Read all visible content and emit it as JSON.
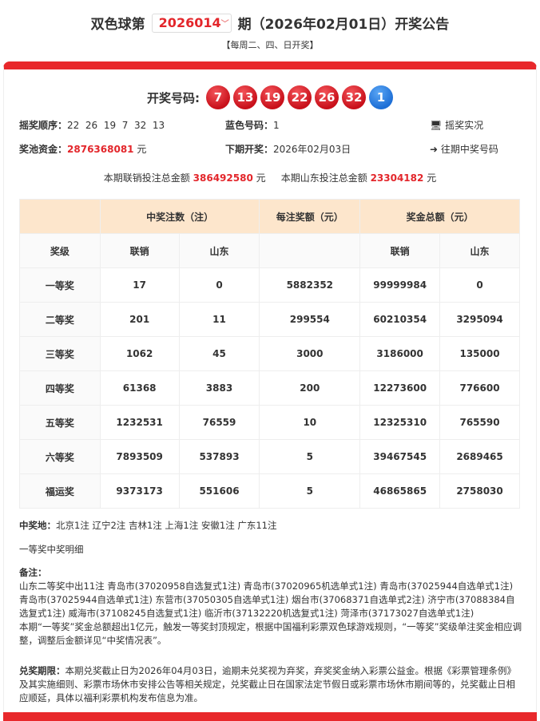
{
  "header": {
    "prefix": "双色球第",
    "issue": "2026014",
    "suffix": "期（2026年02月01日）开奖公告",
    "schedule": "【每周二、四、日开奖】"
  },
  "draw": {
    "label": "开奖号码:",
    "red": [
      "7",
      "13",
      "19",
      "22",
      "26",
      "32"
    ],
    "blue": "1",
    "colors": {
      "red": "#d81e26",
      "blue": "#2a7be0"
    }
  },
  "info": {
    "order_label": "摇奖顺序：",
    "order": "22  26  19  7  32  13",
    "blue_label": "蓝色号码：",
    "blue": "1",
    "live_link": "摇奖实况",
    "pool_label": "奖池资金：",
    "pool": "2876368081",
    "yuan": "元",
    "next_label": "下期开奖：",
    "next": "2026年02月03日",
    "history_link": "往期中奖号码",
    "sales_label": "本期联销投注总金额",
    "sales": "386492580",
    "sd_sales_label": "本期山东投注总金额",
    "sd_sales": "23304182"
  },
  "table": {
    "group_headers": [
      "中奖注数（注）",
      "每注奖额（元）",
      "奖金总额（元）"
    ],
    "sub_headers": [
      "奖级",
      "联销",
      "山东",
      "",
      "联销",
      "山东"
    ],
    "rows": [
      [
        "一等奖",
        "17",
        "0",
        "5882352",
        "99999984",
        "0"
      ],
      [
        "二等奖",
        "201",
        "11",
        "299554",
        "60210354",
        "3295094"
      ],
      [
        "三等奖",
        "1062",
        "45",
        "3000",
        "3186000",
        "135000"
      ],
      [
        "四等奖",
        "61368",
        "3883",
        "200",
        "12273600",
        "776600"
      ],
      [
        "五等奖",
        "1232531",
        "76559",
        "10",
        "12325310",
        "765590"
      ],
      [
        "六等奖",
        "7893509",
        "537893",
        "5",
        "39467545",
        "2689465"
      ],
      [
        "福运奖",
        "9373173",
        "551606",
        "5",
        "46865865",
        "2758030"
      ]
    ]
  },
  "notes": {
    "places_label": "中奖地：",
    "places": "北京1注 辽宁2注 吉林1注 上海1注 安徽1注 广东11注",
    "detail_title": "一等奖中奖明细",
    "remark_label": "备注：",
    "remark1": "山东二等奖中出11注 青岛市(37020958自选复式1注) 青岛市(37020965机选单式1注) 青岛市(37025944自选单式1注) 青岛市(37025944自选单式1注) 东营市(37050305自选单式1注) 烟台市(37068371自选单式2注) 济宁市(37088384自选复式1注) 威海市(37108245自选复式1注) 临沂市(37132220机选复式1注) 菏泽市(37173027自选单式1注)",
    "remark2": "本期“一等奖”奖金总额超出1亿元，触发一等奖封顶规定，根据中国福利彩票双色球游戏规则，“一等奖”奖级单注奖金相应调整，调整后金额详见“中奖情况表”。",
    "deadline_label": "兑奖期限：",
    "deadline": "本期兑奖截止日为2026年04月03日，逾期未兑奖视为弃奖，弃奖奖金纳入彩票公益金。根据《彩票管理条例》及其实施细则、彩票市场休市安排公告等相关规定，兑奖截止日在国家法定节假日或彩票市场休市期间等的，兑奖截止日相应顺延，具体以福利彩票机构发布信息为准。"
  }
}
